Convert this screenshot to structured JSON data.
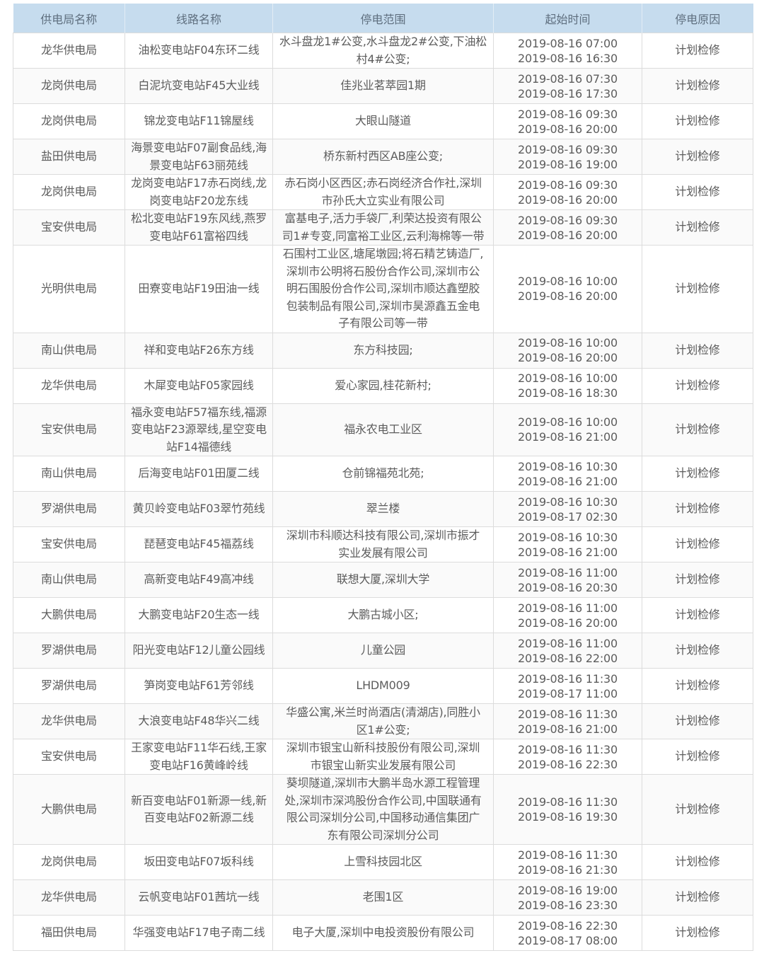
{
  "headers": [
    "供电局名称",
    "线路名称",
    "停电范围",
    "起始时间",
    "停电原因"
  ],
  "rows": [
    {
      "bureau": "龙华供电局",
      "line": "油松变电站F04东环二线",
      "scope": "水斗盘龙1#公变,水斗盘龙2#公变,下油松\n村4#公变;",
      "time": "2019-08-16 07:00\n2019-08-16 16:30",
      "reason": "计划检修"
    },
    {
      "bureau": "龙岗供电局",
      "line": "白泥坑变电站F45大业线",
      "scope": "佳兆业茗萃园1期",
      "time": "2019-08-16 07:30\n2019-08-16 17:30",
      "reason": "计划检修"
    },
    {
      "bureau": "龙岗供电局",
      "line": "锦龙变电站F11锦屋线",
      "scope": "大眼山隧道",
      "time": "2019-08-16 09:30\n2019-08-16 20:00",
      "reason": "计划检修"
    },
    {
      "bureau": "盐田供电局",
      "line": "海景变电站F07副食品线,海\n景变电站F63丽苑线",
      "scope": "桥东新村西区AB座公变;",
      "time": "2019-08-16 09:30\n2019-08-16 19:00",
      "reason": "计划检修"
    },
    {
      "bureau": "龙岗供电局",
      "line": "龙岗变电站F17赤石岗线,龙\n岗变电站F20龙东线",
      "scope": "赤石岗小区西区;赤石岗经济合作社,深圳\n市孙氏大立实业有限公司",
      "time": "2019-08-16 09:30\n2019-08-16 20:00",
      "reason": "计划检修"
    },
    {
      "bureau": "宝安供电局",
      "line": "松北变电站F19东风线,燕罗\n变电站F61富裕四线",
      "scope": "富基电子,活力手袋厂,利荣达投资有限公\n司1#专变,同富裕工业区,云利海棉等一带",
      "time": "2019-08-16 09:30\n2019-08-16 20:00",
      "reason": "计划检修"
    },
    {
      "bureau": "光明供电局",
      "line": "田寮变电站F19田油一线",
      "scope": "石围村工业区,塘尾墩园;将石精艺铸造厂,\n深圳市公明将石股份合作公司,深圳市公\n明石围股份合作公司,深圳市顺达鑫塑胶\n包装制品有限公司,深圳市昊源鑫五金电\n子有限公司等一带",
      "time": "2019-08-16 10:00\n2019-08-16 20:00",
      "reason": "计划检修"
    },
    {
      "bureau": "南山供电局",
      "line": "祥和变电站F26东方线",
      "scope": "东方科技园;",
      "time": "2019-08-16 10:00\n2019-08-16 20:00",
      "reason": "计划检修"
    },
    {
      "bureau": "龙华供电局",
      "line": "木犀变电站F05家园线",
      "scope": "爱心家园,桂花新村;",
      "time": "2019-08-16 10:00\n2019-08-16 18:30",
      "reason": "计划检修"
    },
    {
      "bureau": "宝安供电局",
      "line": "福永变电站F57福东线,福源\n变电站F23源翠线,星空变电\n站F14福德线",
      "scope": "福永农电工业区",
      "time": "2019-08-16 10:00\n2019-08-16 21:00",
      "reason": "计划检修"
    },
    {
      "bureau": "南山供电局",
      "line": "后海变电站F01田厦二线",
      "scope": "仓前锦福苑北苑;",
      "time": "2019-08-16 10:30\n2019-08-16 21:00",
      "reason": "计划检修"
    },
    {
      "bureau": "罗湖供电局",
      "line": "黄贝岭变电站F03翠竹苑线",
      "scope": "翠兰楼",
      "time": "2019-08-16 10:30\n2019-08-17 02:30",
      "reason": "计划检修"
    },
    {
      "bureau": "宝安供电局",
      "line": "琵琶变电站F45福荔线",
      "scope": "深圳市科顺达科技有限公司,深圳市振才\n实业发展有限公司",
      "time": "2019-08-16 10:30\n2019-08-16 21:00",
      "reason": "计划检修"
    },
    {
      "bureau": "南山供电局",
      "line": "高新变电站F49高冲线",
      "scope": "联想大厦,深圳大学",
      "time": "2019-08-16 11:00\n2019-08-16 20:30",
      "reason": "计划检修"
    },
    {
      "bureau": "大鹏供电局",
      "line": "大鹏变电站F20生态一线",
      "scope": "大鹏古城小区;",
      "time": "2019-08-16 11:00\n2019-08-16 20:00",
      "reason": "计划检修"
    },
    {
      "bureau": "罗湖供电局",
      "line": "阳光变电站F12儿童公园线",
      "scope": "儿童公园",
      "time": "2019-08-16 11:00\n2019-08-16 22:00",
      "reason": "计划检修"
    },
    {
      "bureau": "罗湖供电局",
      "line": "笋岗变电站F61芳邻线",
      "scope": "LHDM009",
      "time": "2019-08-16 11:30\n2019-08-17 11:00",
      "reason": "计划检修"
    },
    {
      "bureau": "龙华供电局",
      "line": "大浪变电站F48华兴二线",
      "scope": "华盛公寓,米兰时尚酒店(清湖店),同胜小\n区1#公变;",
      "time": "2019-08-16 11:30\n2019-08-16 21:00",
      "reason": "计划检修"
    },
    {
      "bureau": "宝安供电局",
      "line": "王家变电站F11华石线,王家\n变电站F16黄峰岭线",
      "scope": "深圳市银宝山新科技股份有限公司,深圳\n市银宝山新实业发展有限公司",
      "time": "2019-08-16 11:30\n2019-08-16 22:30",
      "reason": "计划检修"
    },
    {
      "bureau": "大鹏供电局",
      "line": "新百变电站F01新源一线,新\n百变电站F02新源二线",
      "scope": "葵坝隧道,深圳市大鹏半岛水源工程管理\n处,深圳市深鸿股份合作公司,中国联通有\n限公司深圳分公司,中国移动通信集团广\n东有限公司深圳分公司",
      "time": "2019-08-16 11:30\n2019-08-16 19:30",
      "reason": "计划检修"
    },
    {
      "bureau": "龙岗供电局",
      "line": "坂田变电站F07坂科线",
      "scope": "上雪科技园北区",
      "time": "2019-08-16 11:30\n2019-08-16 21:30",
      "reason": "计划检修"
    },
    {
      "bureau": "龙华供电局",
      "line": "云帆变电站F01茜坑一线",
      "scope": "老围1区",
      "time": "2019-08-16 19:00\n2019-08-16 23:30",
      "reason": "计划检修"
    },
    {
      "bureau": "福田供电局",
      "line": "华强变电站F17电子南二线",
      "scope": "电子大厦,深圳中电投资股份有限公司",
      "time": "2019-08-16 22:30\n2019-08-17 08:00",
      "reason": "计划检修"
    }
  ]
}
